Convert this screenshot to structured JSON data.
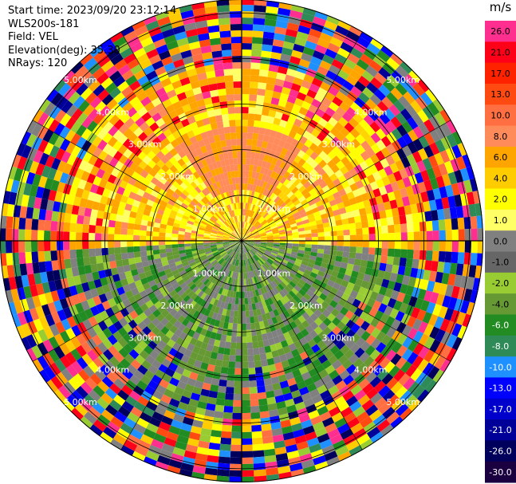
{
  "info": {
    "start_time": "Start time: 2023/09/20 23:12:14",
    "instrument": "WLS200s-181",
    "field": "Field: VEL",
    "elevation": "Elevation(deg): 35.30",
    "nrays": "NRays: 120"
  },
  "colorbar": {
    "unit": "m/s",
    "ticks": [
      "26.0",
      "21.0",
      "17.0",
      "13.0",
      "10.0",
      "8.0",
      "6.0",
      "4.0",
      "2.0",
      "1.0",
      "0.0",
      "-1.0",
      "-2.0",
      "-4.0",
      "-6.0",
      "-8.0",
      "-10.0",
      "-13.0",
      "-17.0",
      "-21.0",
      "-26.0",
      "-30.0"
    ],
    "colors": [
      "#ff2f8f",
      "#ff0019",
      "#ff2200",
      "#ff4a12",
      "#ff6f41",
      "#ff8a5a",
      "#ffa500",
      "#ffcc00",
      "#ffff00",
      "#ffff66",
      "#808080",
      "#666666",
      "#99cc33",
      "#669933",
      "#228b22",
      "#2e8b57",
      "#1e90ff",
      "#0000ff",
      "#0000cd",
      "#000099",
      "#00005c",
      "#1a0040"
    ]
  },
  "range_labels": [
    "1.00km",
    "2.00km",
    "3.00km",
    "4.00km",
    "5.00km"
  ],
  "chart_data": {
    "type": "heatmap",
    "title": "",
    "field": "VEL",
    "units": "m/s",
    "nrays": 120,
    "elevation_deg": 35.3,
    "range_rings_km": [
      1,
      2,
      3,
      4,
      5
    ],
    "pattern": {
      "near_north_hemisphere": "positive velocities ~2 to 8 m/s (yellow/orange/salmon)",
      "near_south_hemisphere": "negative velocities ~-1 to -6 m/s (gray/olive/green)",
      "outer_ranges": "noisy, full-scale random values"
    }
  }
}
